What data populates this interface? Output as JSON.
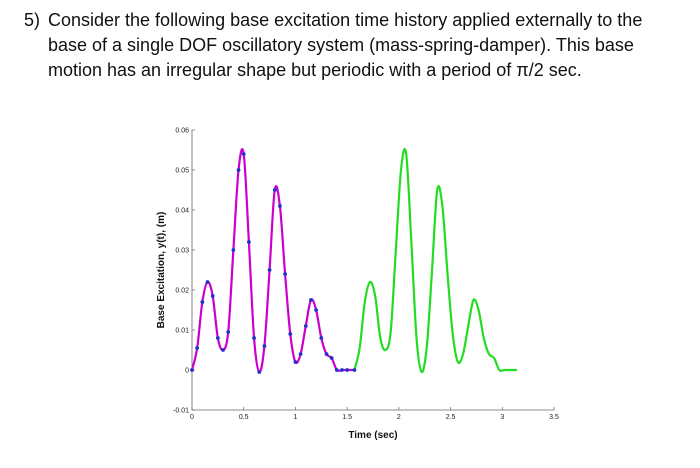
{
  "problem": {
    "number": "5)",
    "text": "Consider the following base excitation time history applied externally to the base of a single DOF oscillatory system (mass-spring-damper). This base motion has an irregular shape but periodic with a period of π/2 sec."
  },
  "chart_data": {
    "type": "line",
    "title": "",
    "xlabel": "Time (sec)",
    "ylabel": "Base Excitation, y(t), (m)",
    "xlim": [
      0,
      3.5
    ],
    "ylim": [
      -0.01,
      0.06
    ],
    "xticks": [
      0,
      0.5,
      1,
      1.5,
      2,
      2.5,
      3,
      3.5
    ],
    "xtick_labels": [
      "0",
      "0.5",
      "1",
      "1.5",
      "2",
      "2.5",
      "3",
      "3.5"
    ],
    "yticks": [
      -0.01,
      0,
      0.01,
      0.02,
      0.03,
      0.04,
      0.05,
      0.06
    ],
    "ytick_labels": [
      "-0.01",
      "0",
      "0.01",
      "0.02",
      "0.03",
      "0.04",
      "0.05",
      "0.06"
    ],
    "grid": false,
    "legend": "none",
    "series": [
      {
        "color": "#cc00cc",
        "x": [
          0,
          0.05,
          0.1,
          0.15,
          0.2,
          0.25,
          0.3,
          0.35,
          0.4,
          0.45,
          0.5,
          0.55,
          0.6,
          0.65,
          0.7,
          0.75,
          0.8,
          0.85,
          0.9,
          0.95,
          1.0,
          1.05,
          1.1,
          1.15,
          1.2,
          1.25,
          1.3,
          1.35,
          1.4,
          1.45,
          1.5,
          1.55,
          1.5708
        ],
        "y": [
          0.0,
          0.0055,
          0.017,
          0.022,
          0.0185,
          0.008,
          0.005,
          0.0095,
          0.03,
          0.05,
          0.054,
          0.032,
          0.008,
          -0.0005,
          0.006,
          0.025,
          0.045,
          0.041,
          0.024,
          0.009,
          0.002,
          0.004,
          0.011,
          0.0175,
          0.015,
          0.008,
          0.004,
          0.003,
          0.0,
          0.0,
          0.0,
          0.0,
          0.0
        ]
      },
      {
        "color": "#22dd22",
        "x": [
          1.5708,
          1.6208,
          1.6708,
          1.7208,
          1.7708,
          1.8208,
          1.8708,
          1.9208,
          1.9708,
          2.0208,
          2.0708,
          2.1208,
          2.1708,
          2.2208,
          2.2708,
          2.3208,
          2.3708,
          2.4208,
          2.4708,
          2.5208,
          2.5708,
          2.6208,
          2.6708,
          2.7208,
          2.7708,
          2.8208,
          2.8708,
          2.9208,
          2.9708,
          3.0208,
          3.0708,
          3.1208,
          3.1416
        ],
        "y": [
          0.0,
          0.0055,
          0.017,
          0.022,
          0.0185,
          0.008,
          0.005,
          0.0095,
          0.03,
          0.05,
          0.054,
          0.032,
          0.008,
          -0.0005,
          0.006,
          0.025,
          0.045,
          0.041,
          0.024,
          0.009,
          0.002,
          0.004,
          0.011,
          0.0175,
          0.015,
          0.008,
          0.004,
          0.003,
          0.0,
          0.0,
          0.0,
          0.0,
          0.0
        ]
      }
    ],
    "markers": {
      "color": "#2233cc",
      "x": [
        0.0,
        0.05,
        0.1,
        0.15,
        0.2,
        0.25,
        0.3,
        0.35,
        0.4,
        0.45,
        0.5,
        0.55,
        0.6,
        0.65,
        0.7,
        0.75,
        0.8,
        0.85,
        0.9,
        0.95,
        1.0,
        1.05,
        1.1,
        1.15,
        1.2,
        1.25,
        1.3,
        1.35,
        1.4,
        1.45,
        1.5,
        1.5708
      ],
      "y": [
        0.0,
        0.0055,
        0.017,
        0.022,
        0.0185,
        0.008,
        0.005,
        0.0095,
        0.03,
        0.05,
        0.054,
        0.032,
        0.008,
        -0.0005,
        0.006,
        0.025,
        0.045,
        0.041,
        0.024,
        0.009,
        0.002,
        0.004,
        0.011,
        0.0175,
        0.015,
        0.008,
        0.004,
        0.003,
        0.0,
        0.0,
        0.0,
        0.0
      ]
    }
  }
}
